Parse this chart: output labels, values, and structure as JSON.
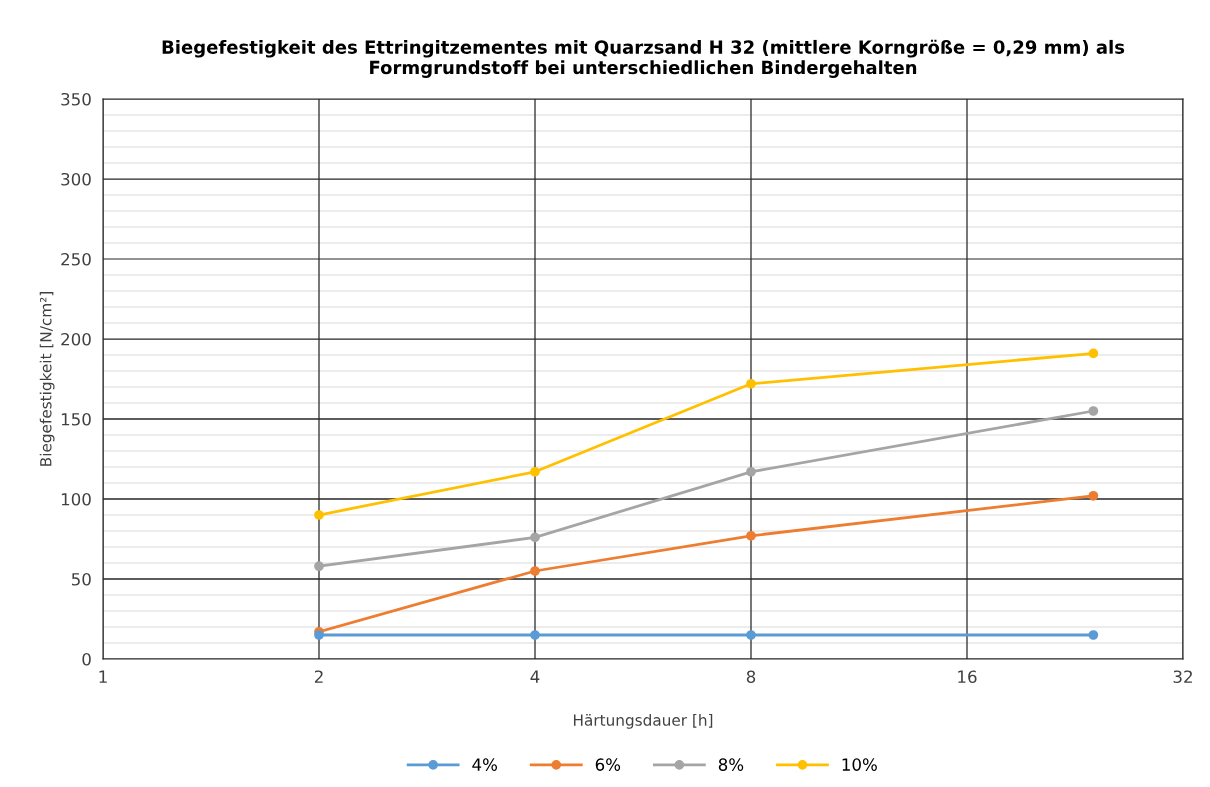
{
  "chart_data": {
    "type": "line",
    "title": "Biegefestigkeit des Ettringitzementes mit Quarzsand H 32 (mittlere Korngröße = 0,29 mm) als\nFormgrundstoff bei unterschiedlichen Bindergehalten",
    "xlabel": "Härtungsdauer [h]",
    "ylabel": "Biegefestigkeit [N/cm²]",
    "x": [
      2,
      4,
      8,
      24
    ],
    "log": "x",
    "xlim": [
      1,
      32
    ],
    "xticks": [
      1,
      2,
      4,
      8,
      16,
      32
    ],
    "ylim": [
      0,
      350
    ],
    "yticks": [
      0,
      50,
      100,
      150,
      200,
      250,
      300,
      350
    ],
    "grid": true,
    "legend": "bottom",
    "marker": "circle",
    "line_style": "solid",
    "series": [
      {
        "name": "4%",
        "color": "#5b9bd5",
        "values": [
          15,
          15,
          15,
          15
        ]
      },
      {
        "name": "6%",
        "color": "#ed7d31",
        "values": [
          17,
          55,
          77,
          102
        ]
      },
      {
        "name": "8%",
        "color": "#a5a5a5",
        "values": [
          58,
          76,
          117,
          155
        ]
      },
      {
        "name": "10%",
        "color": "#ffc000",
        "values": [
          90,
          117,
          172,
          191
        ]
      }
    ]
  }
}
